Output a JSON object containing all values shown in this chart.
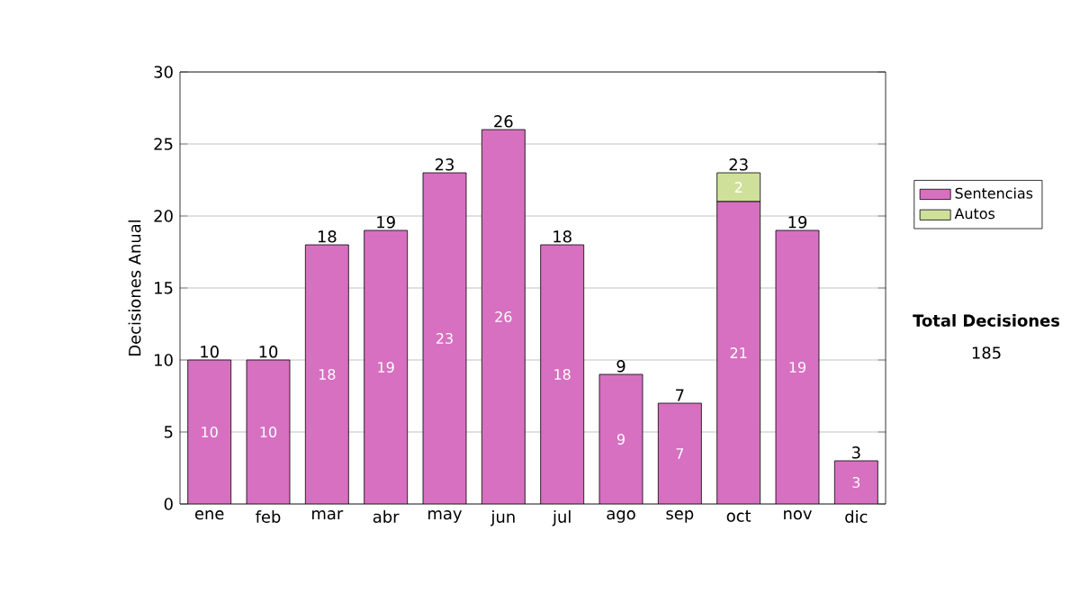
{
  "chart_data": {
    "type": "bar",
    "stacked": true,
    "ylabel": "Decisiones Anual",
    "categories": [
      "ene",
      "feb",
      "mar",
      "abr",
      "may",
      "jun",
      "jul",
      "ago",
      "sep",
      "oct",
      "nov",
      "dic"
    ],
    "series": [
      {
        "name": "Sentencias",
        "color": "#d770c0",
        "values": [
          10,
          10,
          18,
          19,
          23,
          26,
          18,
          9,
          7,
          21,
          19,
          3
        ],
        "value_labels": [
          "10",
          "10",
          "18",
          "19",
          "23",
          "26",
          "18",
          "9",
          "7",
          "21",
          "19",
          "3"
        ]
      },
      {
        "name": "Autos",
        "color": "#cfe09a",
        "values": [
          0,
          0,
          0,
          0,
          0,
          0,
          0,
          0,
          0,
          2,
          0,
          0
        ],
        "value_labels": [
          null,
          null,
          null,
          null,
          null,
          null,
          null,
          null,
          null,
          "2",
          null,
          null
        ]
      }
    ],
    "totals": [
      "10",
      "10",
      "18",
      "19",
      "23",
      "26",
      "18",
      "9",
      "7",
      "23",
      "19",
      "3"
    ],
    "ylim": [
      0,
      30
    ],
    "yticks": [
      0,
      5,
      10,
      15,
      20,
      25,
      30
    ],
    "grid": "y",
    "legend": "right",
    "annotations": [
      "Total Decisiones",
      "185"
    ]
  }
}
